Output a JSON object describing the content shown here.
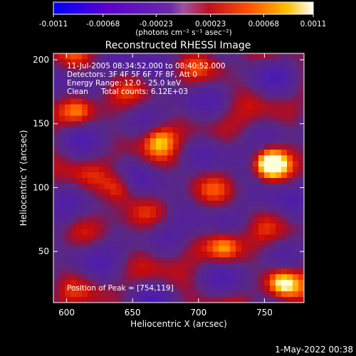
{
  "colorbar": {
    "tick_labels": [
      "-0.0011",
      "-0.00068",
      "-0.00023",
      "0.00023",
      "0.00068",
      "0.0011"
    ],
    "tick_values": [
      -0.0011,
      -0.00068,
      -0.00023,
      0.00023,
      0.00068,
      0.0011
    ],
    "range": [
      -0.0011,
      0.0011
    ],
    "units_label": "(photons cm⁻² s⁻¹ asec⁻²)",
    "colors": [
      "#0000ff",
      "#7b00c8",
      "#ffffff",
      "#6a0dad",
      "#ff0000",
      "#ff8c00",
      "#ffff00",
      "#ffffff"
    ]
  },
  "chart_data": {
    "type": "heatmap",
    "title": "Reconstructed RHESSI Image",
    "xlabel": "Heliocentric X (arcsec)",
    "ylabel": "Heliocentric Y (arcsec)",
    "xlim": [
      590,
      780
    ],
    "ylim": [
      10,
      205
    ],
    "xticks": [
      600,
      650,
      700,
      750
    ],
    "yticks": [
      50,
      100,
      150,
      200
    ],
    "grid": false,
    "bright_sources": [
      {
        "x": 754,
        "y": 119,
        "relative_intensity": 1.0
      },
      {
        "x": 763,
        "y": 26,
        "relative_intensity": 0.75
      },
      {
        "x": 720,
        "y": 53,
        "relative_intensity": 0.6
      },
      {
        "x": 640,
        "y": 100,
        "relative_intensity": 0.55
      },
      {
        "x": 670,
        "y": 138,
        "relative_intensity": 0.5
      },
      {
        "x": 610,
        "y": 160,
        "relative_intensity": 0.45
      }
    ],
    "annotations": {
      "time_range": "11-Jul-2005 08:34:52.000 to 08:40:52.000",
      "detectors": "Detectors: 3F 4F 5F 6F 7F 8F, Att 0",
      "energy_range": "Energy Range: 12.0 - 25.0 keV",
      "clean_label": "Clean",
      "total_counts": "Total counts: 6.12E+03",
      "peak_position": "Position of Peak = [754,119]"
    }
  },
  "footer": {
    "timestamp": "1-May-2022 00:38"
  }
}
